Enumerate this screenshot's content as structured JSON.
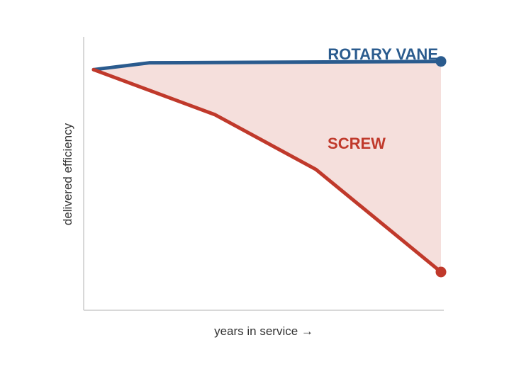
{
  "colors": {
    "rotary": "#2a5b8e",
    "screw": "#c0392b",
    "gap_fill": "#f3d9d6",
    "axis": "#cccccc"
  },
  "chart_data": {
    "type": "line",
    "title": "",
    "xlabel": "years in service →",
    "ylabel": "delivered efficiency",
    "xlim": [
      0,
      10
    ],
    "ylim": [
      0,
      100
    ],
    "grid": false,
    "legend": "none",
    "shaded_between": [
      "ROTARY VANE",
      "SCREW"
    ],
    "series": [
      {
        "name": "ROTARY VANE",
        "color": "#2a5b8e",
        "x": [
          0,
          1.6,
          10
        ],
        "y": [
          88,
          90.5,
          91
        ]
      },
      {
        "name": "SCREW",
        "color": "#c0392b",
        "x": [
          0,
          3.5,
          6.4,
          10
        ],
        "y": [
          88,
          71.5,
          51.5,
          14
        ]
      }
    ]
  }
}
